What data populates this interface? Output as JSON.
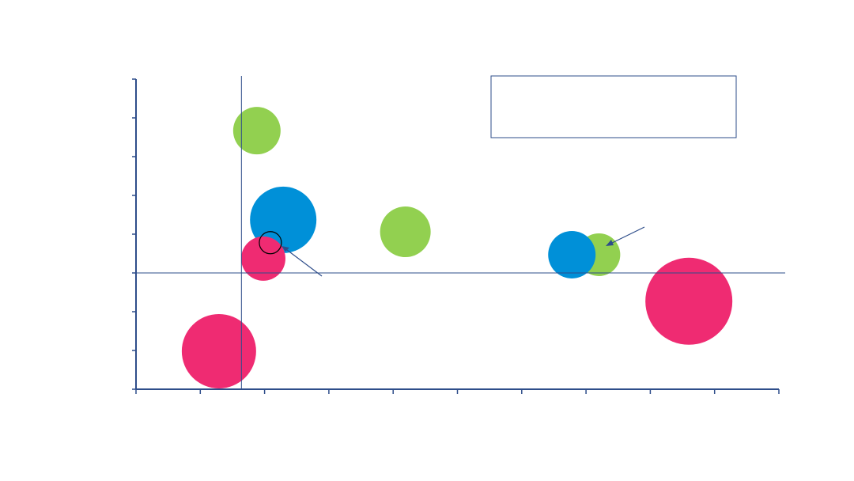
{
  "chart_data": {
    "type": "bubble",
    "xlim": [
      0,
      10
    ],
    "xticks": [
      0,
      1,
      2,
      3,
      4,
      5,
      6,
      7,
      8,
      9,
      10
    ],
    "ylim": [
      -3,
      5
    ],
    "yticks": [
      -3,
      -2,
      -1,
      0,
      1,
      2,
      3,
      4,
      5
    ],
    "x_reference": 1.64,
    "y_reference": 0,
    "axis_color": "#2e4d8a",
    "series": [
      {
        "color": "#92d050",
        "x": [
          1.88,
          4.19,
          7.2
        ],
        "values": [
          3.67,
          1.06,
          0.47
        ],
        "sizes": [
          3.0,
          3.2,
          2.7
        ]
      },
      {
        "color": "#0090d8",
        "x": [
          2.29,
          6.78
        ],
        "values": [
          1.37,
          0.47
        ],
        "sizes": [
          4.2,
          3.0
        ]
      },
      {
        "color": "#ef2b72",
        "x": [
          1.98,
          8.6,
          1.29
        ],
        "values": [
          0.37,
          -0.73,
          -2.02
        ],
        "sizes": [
          2.8,
          5.5,
          4.7
        ]
      },
      {
        "color": "#000000",
        "outline": true,
        "x": [
          2.09
        ],
        "values": [
          0.78
        ],
        "sizes": [
          1.4
        ]
      }
    ]
  }
}
